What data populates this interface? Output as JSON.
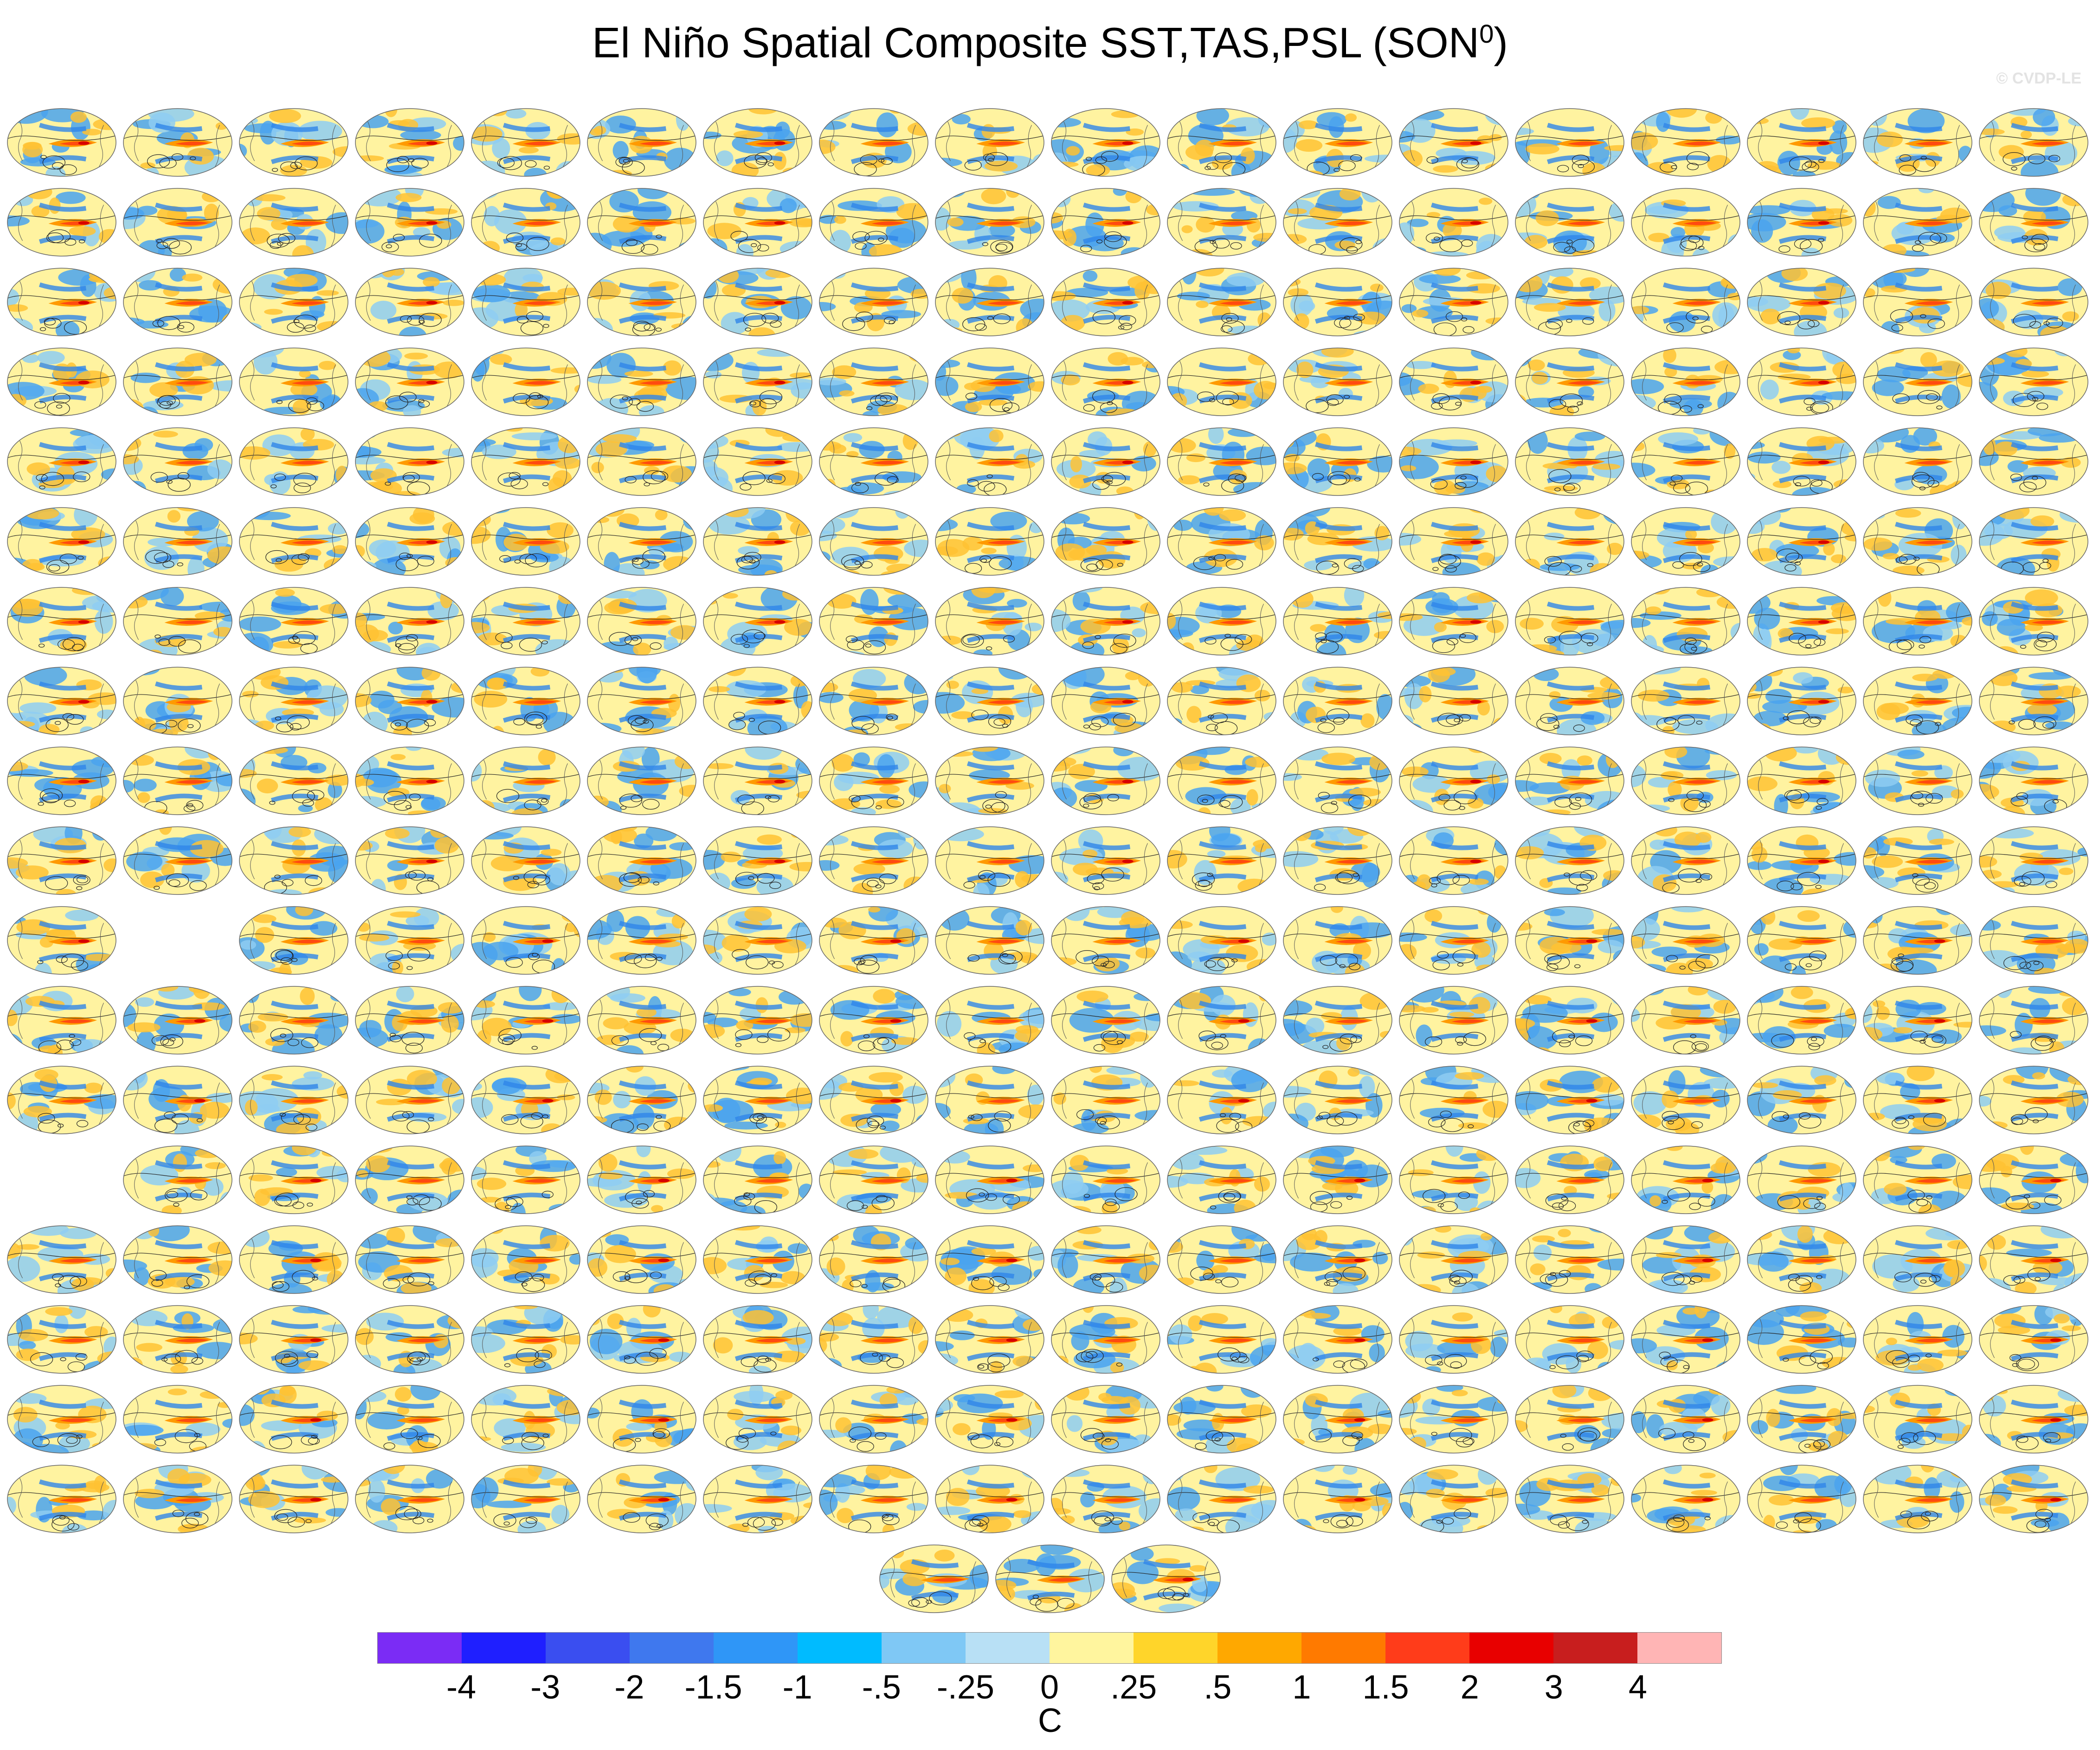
{
  "chart_data": {
    "type": "heatmap",
    "title": "El Niño Spatial Composite SST,TAS,PSL (SON",
    "title_superscript": "0",
    "title_close": ")",
    "watermark": "© CVDP-LE",
    "colorbar": {
      "colors": [
        "#7b2cf5",
        "#1f1fff",
        "#3a4ef0",
        "#3f78ee",
        "#2f96f7",
        "#00bbff",
        "#7fc8f5",
        "#b8e0f5",
        "#fff59e",
        "#ffd52a",
        "#ffa800",
        "#ff7a00",
        "#ff3c1a",
        "#e80000",
        "#c81e1e",
        "#ffb5b5"
      ],
      "tick_labels": [
        "-4",
        "-3",
        "-2",
        "-1.5",
        "-1",
        "-.5",
        "-.25",
        "0",
        ".25",
        ".5",
        "1",
        "1.5",
        "2",
        "3",
        "4"
      ],
      "unit": "C"
    },
    "panels": {
      "columns": 18,
      "rows": 19,
      "missing_cells": [
        [
          10,
          1
        ],
        [
          13,
          0
        ]
      ],
      "last_row_count": 3
    }
  }
}
